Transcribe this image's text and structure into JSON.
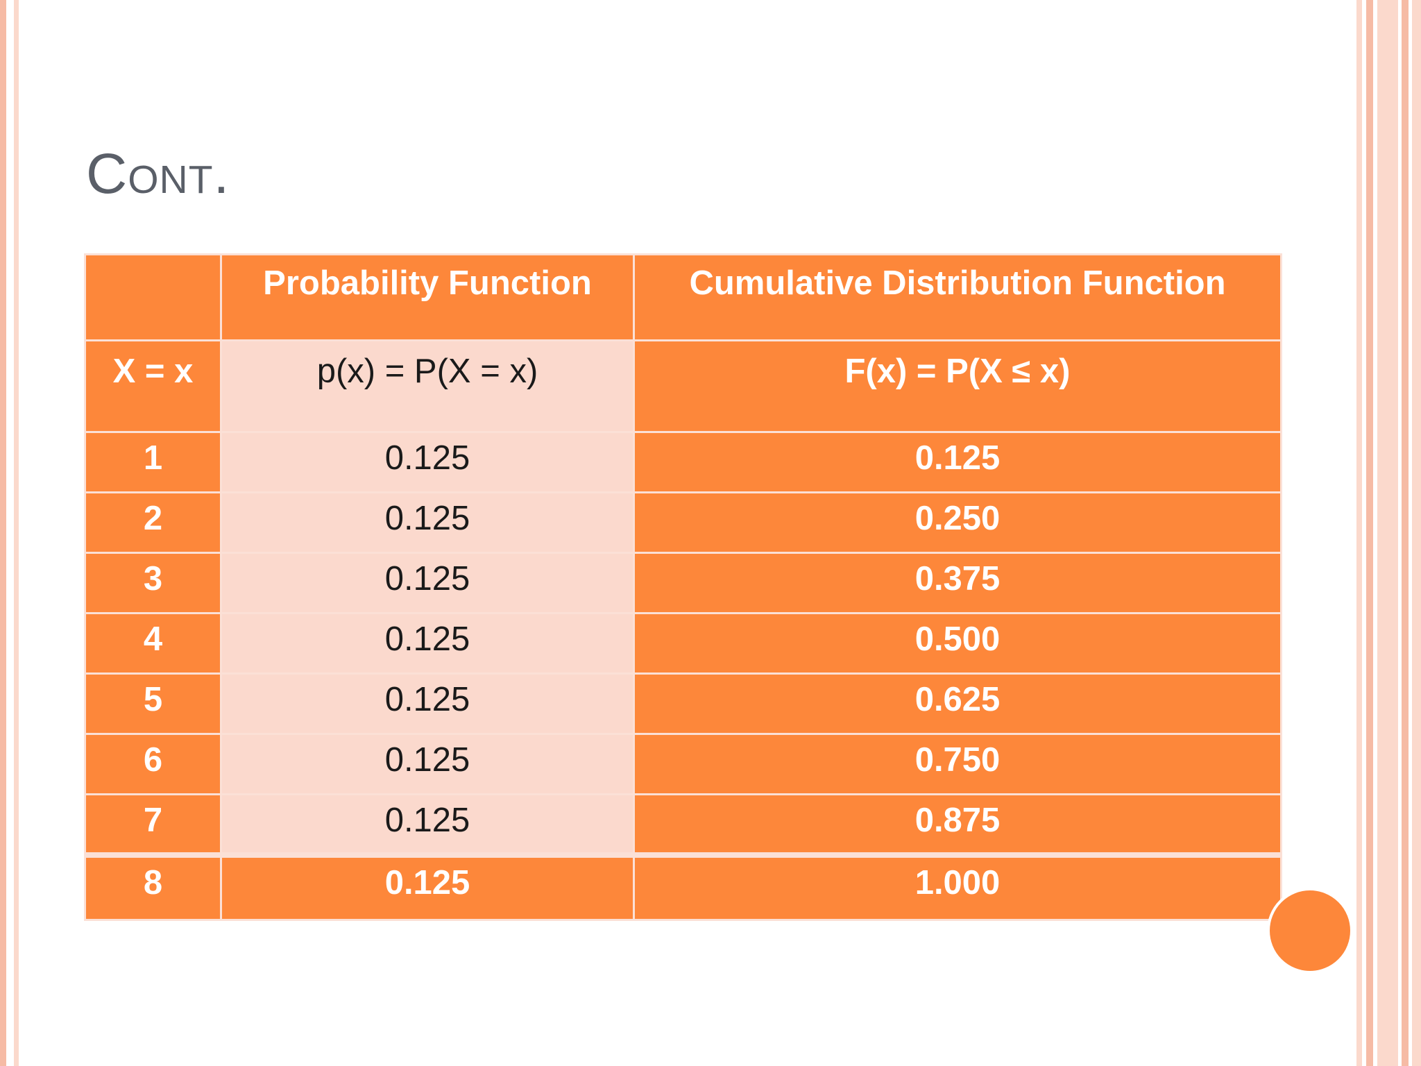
{
  "slide": {
    "title": "Cont.",
    "table": {
      "header": [
        "",
        "Probability Function",
        "Cumulative Distribution Function"
      ],
      "subheader": [
        "X = x",
        "p(x) = P(X = x)",
        "F(x) = P(X ≤ x)"
      ],
      "rows": [
        [
          "1",
          "0.125",
          "0.125"
        ],
        [
          "2",
          "0.125",
          "0.250"
        ],
        [
          "3",
          "0.125",
          "0.375"
        ],
        [
          "4",
          "0.125",
          "0.500"
        ],
        [
          "5",
          "0.125",
          "0.625"
        ],
        [
          "6",
          "0.125",
          "0.750"
        ],
        [
          "7",
          "0.125",
          "0.875"
        ],
        [
          "8",
          "0.125",
          "1.000"
        ]
      ]
    }
  },
  "colors": {
    "accent": "#fd873a",
    "light_cell": "#fbd9cd",
    "title": "#5a5f68",
    "border_stripes": [
      "#f6bba5",
      "#fbd9cc"
    ]
  }
}
